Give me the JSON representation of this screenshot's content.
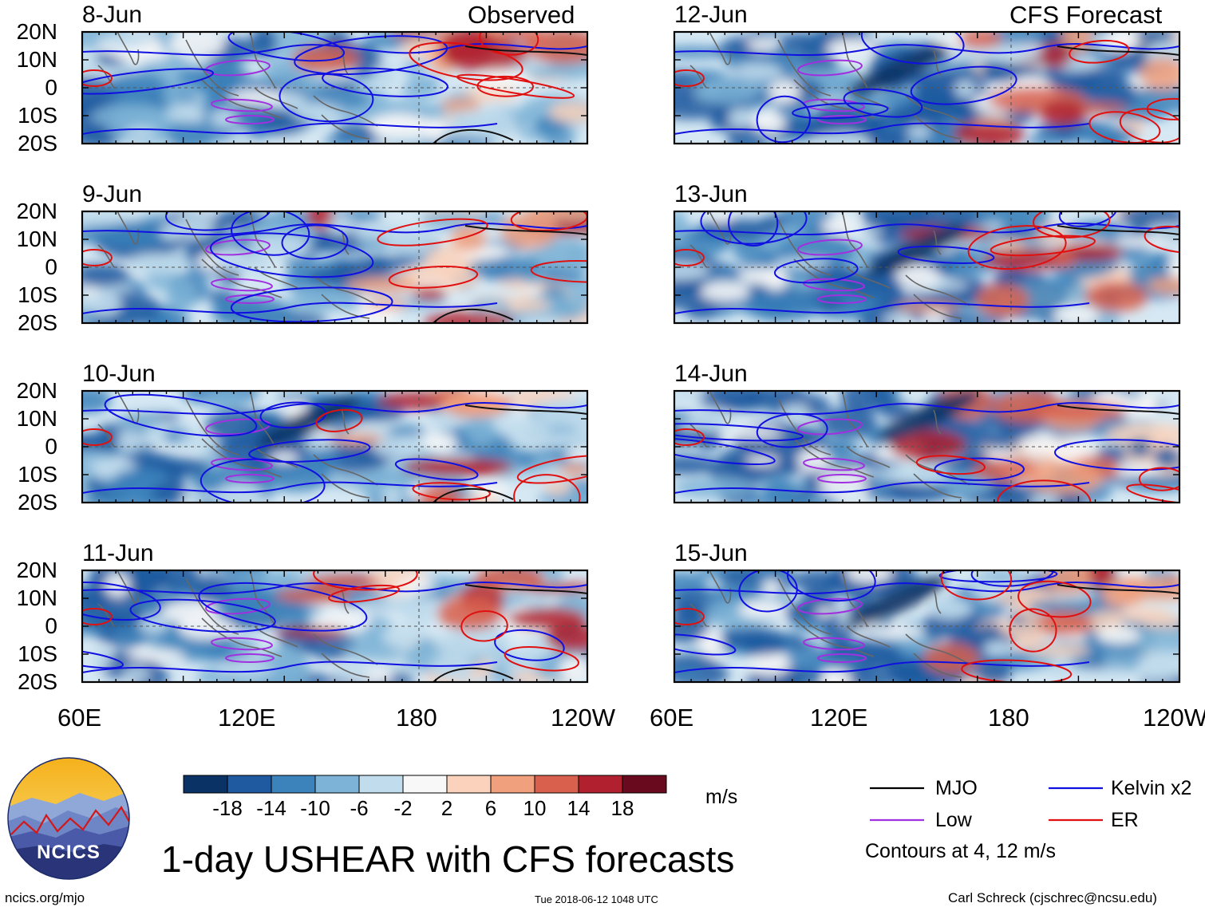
{
  "columns": [
    {
      "label": "Observed",
      "panels": [
        "8-Jun",
        "9-Jun",
        "10-Jun",
        "11-Jun"
      ]
    },
    {
      "label": "CFS Forecast",
      "panels": [
        "12-Jun",
        "13-Jun",
        "14-Jun",
        "15-Jun"
      ]
    }
  ],
  "lat_labels": [
    "20N",
    "10N",
    "0",
    "10S",
    "20S"
  ],
  "lon_labels": [
    "60E",
    "120E",
    "180",
    "120W"
  ],
  "colorbar": {
    "ticks": [
      "-18",
      "-14",
      "-10",
      "-6",
      "-2",
      "2",
      "6",
      "10",
      "14",
      "18"
    ],
    "colors": [
      "#0a3264",
      "#1f5aa0",
      "#3c82bb",
      "#7db3d6",
      "#c1dcec",
      "#f8f8f8",
      "#fbd2bb",
      "#f1a07e",
      "#d8604d",
      "#b0202e",
      "#6a0a1e"
    ],
    "units": "m/s"
  },
  "legend": {
    "items": [
      {
        "label": "MJO",
        "color": "#000000"
      },
      {
        "label": "Kelvin x2",
        "color": "#1010e0"
      },
      {
        "label": "Low",
        "color": "#a030e0"
      },
      {
        "label": "ER",
        "color": "#e01010"
      }
    ],
    "note": "Contours at 4, 12 m/s"
  },
  "title": "1-day USHEAR with CFS forecasts",
  "logo_text": "NCICS",
  "footer": {
    "website": "ncics.org/mjo",
    "timestamp": "Tue 2018-06-12 1048 UTC",
    "author": "Carl Schreck (cjschrec@ncsu.edu)"
  }
}
